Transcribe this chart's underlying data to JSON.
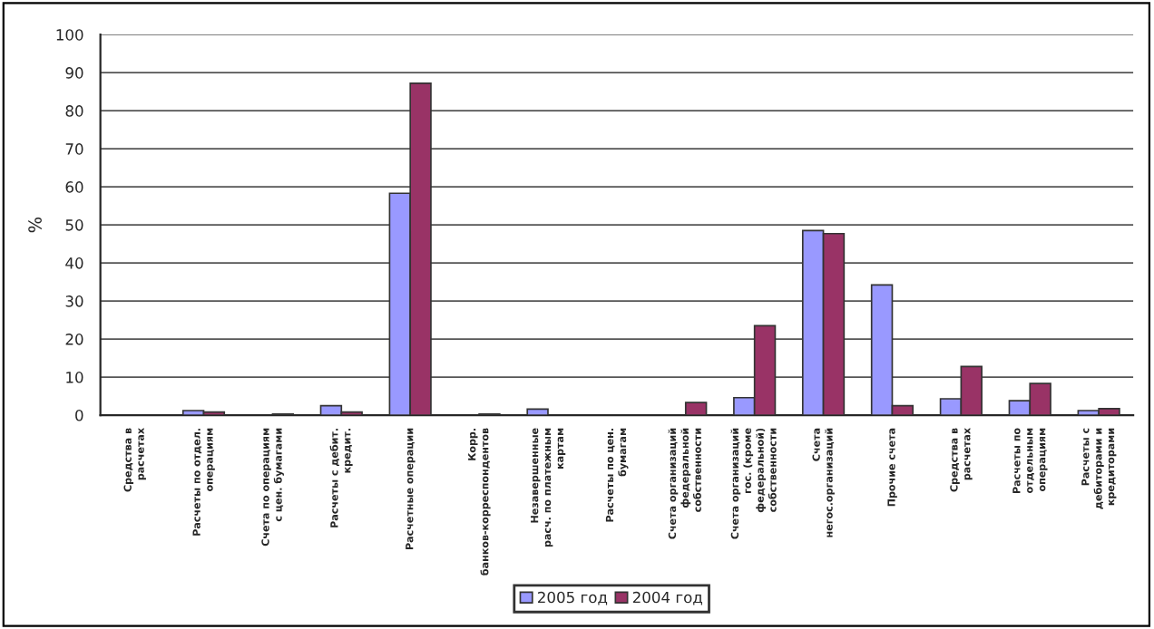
{
  "chart_data": {
    "type": "bar",
    "ylabel": "%",
    "categories": [
      "Средства в расчетах",
      "Расчеты по отдел. операциям",
      "Счета по операциям с цен. бумагами",
      "Расчеты с дебит. кредит.",
      "Расчетные операции",
      "Корр. банков-корреспондентов",
      "Незавершенные расч. по платежным картам",
      "Расчеты по цен. бумагам",
      "Счета организаций федеральной собственности",
      "Счета организаций гос. (кроме федеральной) собственности",
      "Счета негос.организаций",
      "Прочие счета",
      "Средства в расчетах",
      "Расчеты по отдельным операциям",
      "Расчеты с дебиторами и кредиторами"
    ],
    "series": [
      {
        "name": "2005 год",
        "color": "#9999ff",
        "values": [
          0,
          1.2,
          0,
          2.5,
          58.3,
          0,
          1.6,
          0,
          0,
          4.6,
          48.5,
          34.2,
          4.3,
          3.8,
          1.2
        ]
      },
      {
        "name": "2004 год",
        "color": "#993366",
        "values": [
          0,
          0.8,
          0.3,
          0.8,
          87.2,
          0.3,
          0,
          0,
          3.3,
          23.5,
          47.7,
          2.5,
          12.8,
          8.3,
          1.7
        ]
      }
    ],
    "ylim": [
      0,
      100
    ],
    "yticks": [
      0,
      10,
      20,
      30,
      40,
      50,
      60,
      70,
      80,
      90,
      100
    ],
    "grid": "y",
    "legend": "bottom"
  }
}
